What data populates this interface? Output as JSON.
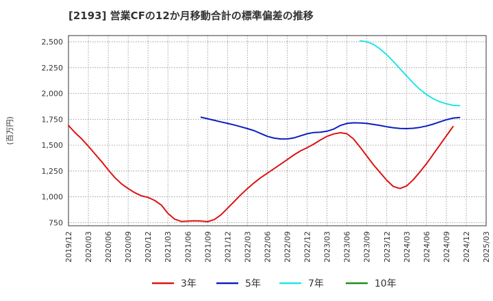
{
  "chart_data": {
    "type": "line",
    "title": "[2193]  営業CFの12か月移動合計の標準偏差の推移",
    "ylabel": "(百万円)",
    "xlabel": "",
    "ylim": [
      720,
      2560
    ],
    "yticks": [
      750,
      1000,
      1250,
      1500,
      1750,
      2000,
      2250,
      2500
    ],
    "ytick_labels": [
      "750",
      "1,000",
      "1,250",
      "1,500",
      "1,750",
      "2,000",
      "2,250",
      "2,500"
    ],
    "xticks": [
      "2019/12",
      "2020/03",
      "2020/06",
      "2020/09",
      "2020/12",
      "2021/03",
      "2021/06",
      "2021/09",
      "2021/12",
      "2022/03",
      "2022/06",
      "2022/09",
      "2022/12",
      "2023/03",
      "2023/06",
      "2023/09",
      "2023/12",
      "2024/03",
      "2024/06",
      "2024/09",
      "2024/12",
      "2025/03"
    ],
    "grid": true,
    "legend_position": "bottom",
    "x_start": "2019/12",
    "series": [
      {
        "name": "3年",
        "color": "#dd1111",
        "x": [
          "2019/12",
          "2020/01",
          "2020/02",
          "2020/03",
          "2020/04",
          "2020/05",
          "2020/06",
          "2020/07",
          "2020/08",
          "2020/09",
          "2020/10",
          "2020/11",
          "2020/12",
          "2021/01",
          "2021/02",
          "2021/03",
          "2021/04",
          "2021/05",
          "2021/06",
          "2021/07",
          "2021/08",
          "2021/09",
          "2021/10",
          "2021/11",
          "2021/12",
          "2022/01",
          "2022/02",
          "2022/03",
          "2022/04",
          "2022/05",
          "2022/06",
          "2022/07",
          "2022/08",
          "2022/09",
          "2022/10",
          "2022/11",
          "2022/12",
          "2023/01",
          "2023/02",
          "2023/03",
          "2023/04",
          "2023/05",
          "2023/06",
          "2023/07",
          "2023/08",
          "2023/09",
          "2023/10",
          "2023/11",
          "2023/12",
          "2024/01",
          "2024/02",
          "2024/03",
          "2024/04",
          "2024/05",
          "2024/06",
          "2024/07",
          "2024/08",
          "2024/09",
          "2024/10",
          "2024/11",
          "2024/12"
        ],
        "values": [
          1690,
          1620,
          1560,
          1490,
          1415,
          1340,
          1260,
          1185,
          1125,
          1080,
          1040,
          1010,
          995,
          965,
          920,
          840,
          785,
          762,
          765,
          768,
          766,
          760,
          780,
          825,
          890,
          955,
          1020,
          1080,
          1135,
          1185,
          1228,
          1272,
          1315,
          1360,
          1405,
          1445,
          1475,
          1510,
          1550,
          1585,
          1608,
          1620,
          1610,
          1560,
          1480,
          1395,
          1310,
          1235,
          1160,
          1100,
          1080,
          1105,
          1165,
          1240,
          1320,
          1410,
          1500,
          1590,
          1680,
          null,
          null
        ],
        "values_note": ""
      },
      {
        "name": "5年",
        "color": "#0a1ebf",
        "x": [
          "2021/08",
          "2021/09",
          "2021/10",
          "2021/11",
          "2021/12",
          "2022/01",
          "2022/02",
          "2022/03",
          "2022/04",
          "2022/05",
          "2022/06",
          "2022/07",
          "2022/08",
          "2022/09",
          "2022/10",
          "2022/11",
          "2022/12",
          "2023/01",
          "2023/02",
          "2023/03",
          "2023/04",
          "2023/05",
          "2023/06",
          "2023/07",
          "2023/08",
          "2023/09",
          "2023/10",
          "2023/11",
          "2023/12",
          "2024/01",
          "2024/02",
          "2024/03",
          "2024/04",
          "2024/05",
          "2024/06",
          "2024/07",
          "2024/08",
          "2024/09",
          "2024/10",
          "2024/11",
          "2024/12"
        ],
        "values": [
          1770,
          1755,
          1740,
          1725,
          1710,
          1695,
          1678,
          1660,
          1640,
          1612,
          1585,
          1568,
          1560,
          1560,
          1570,
          1590,
          1610,
          1622,
          1625,
          1635,
          1655,
          1690,
          1710,
          1716,
          1715,
          1710,
          1700,
          1690,
          1678,
          1668,
          1662,
          1660,
          1663,
          1672,
          1685,
          1703,
          1725,
          1745,
          1762,
          1768,
          null
        ]
      },
      {
        "name": "7年",
        "color": "#22e5e5",
        "x": [
          "2023/08",
          "2023/09",
          "2023/10",
          "2023/11",
          "2023/12",
          "2024/01",
          "2024/02",
          "2024/03",
          "2024/04",
          "2024/05",
          "2024/06",
          "2024/07",
          "2024/08",
          "2024/09",
          "2024/10",
          "2024/11",
          "2024/12"
        ],
        "values": [
          2510,
          2500,
          2475,
          2430,
          2375,
          2310,
          2240,
          2170,
          2100,
          2040,
          1990,
          1950,
          1920,
          1900,
          1885,
          1882,
          null
        ]
      },
      {
        "name": "10年",
        "color": "#1a8f1a",
        "x": [],
        "values": []
      }
    ]
  }
}
